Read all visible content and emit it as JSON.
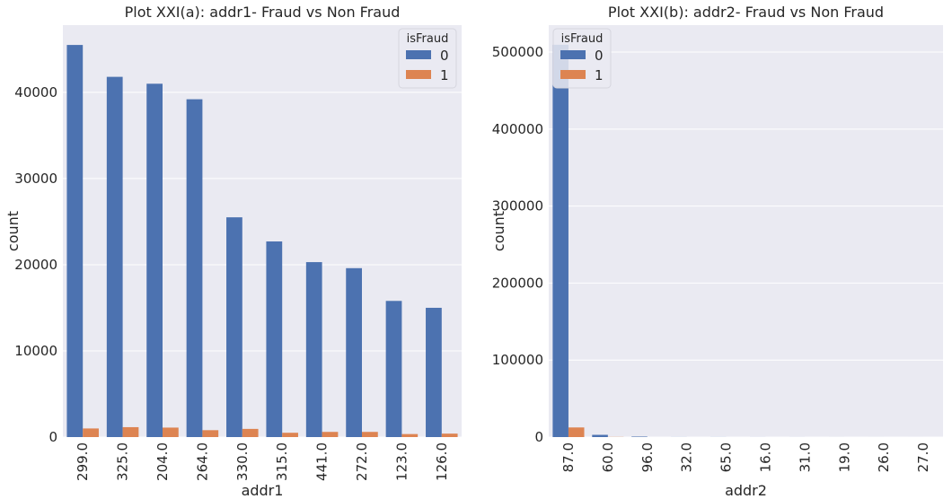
{
  "colors": {
    "background": "#EAEAF2",
    "grid": "#FFFFFF",
    "series0": "#4C72B0",
    "series1": "#DD8452",
    "text": "#262626"
  },
  "chart_data": [
    {
      "type": "bar",
      "title": "Plot XXI(a): addr1- Fraud vs Non Fraud",
      "xlabel": "addr1",
      "ylabel": "count",
      "categories": [
        "299.0",
        "325.0",
        "204.0",
        "264.0",
        "330.0",
        "315.0",
        "441.0",
        "272.0",
        "123.0",
        "126.0"
      ],
      "series": [
        {
          "name": "0",
          "values": [
            45500,
            41800,
            41000,
            39200,
            25500,
            22700,
            20300,
            19600,
            15800,
            15000
          ]
        },
        {
          "name": "1",
          "values": [
            1000,
            1150,
            1100,
            800,
            950,
            500,
            600,
            600,
            350,
            400
          ]
        }
      ],
      "ylim": [
        0,
        47800
      ],
      "yticks": [
        0,
        10000,
        20000,
        30000,
        40000
      ],
      "grid": true,
      "legend": {
        "title": "isFraud",
        "placement": "top-right"
      }
    },
    {
      "type": "bar",
      "title": "Plot XXI(b): addr2- Fraud vs Non Fraud",
      "xlabel": "addr2",
      "ylabel": "count",
      "categories": [
        "87.0",
        "60.0",
        "96.0",
        "32.0",
        "65.0",
        "16.0",
        "31.0",
        "19.0",
        "26.0",
        "27.0"
      ],
      "series": [
        {
          "name": "0",
          "values": [
            509500,
            2900,
            600,
            80,
            80,
            50,
            45,
            30,
            25,
            20
          ]
        },
        {
          "name": "1",
          "values": [
            12500,
            200,
            10,
            1,
            1,
            0,
            0,
            0,
            0,
            0
          ]
        }
      ],
      "ylim": [
        0,
        535000
      ],
      "yticks": [
        0,
        100000,
        200000,
        300000,
        400000,
        500000
      ],
      "grid": true,
      "legend": {
        "title": "isFraud",
        "placement": "top-left"
      }
    }
  ]
}
